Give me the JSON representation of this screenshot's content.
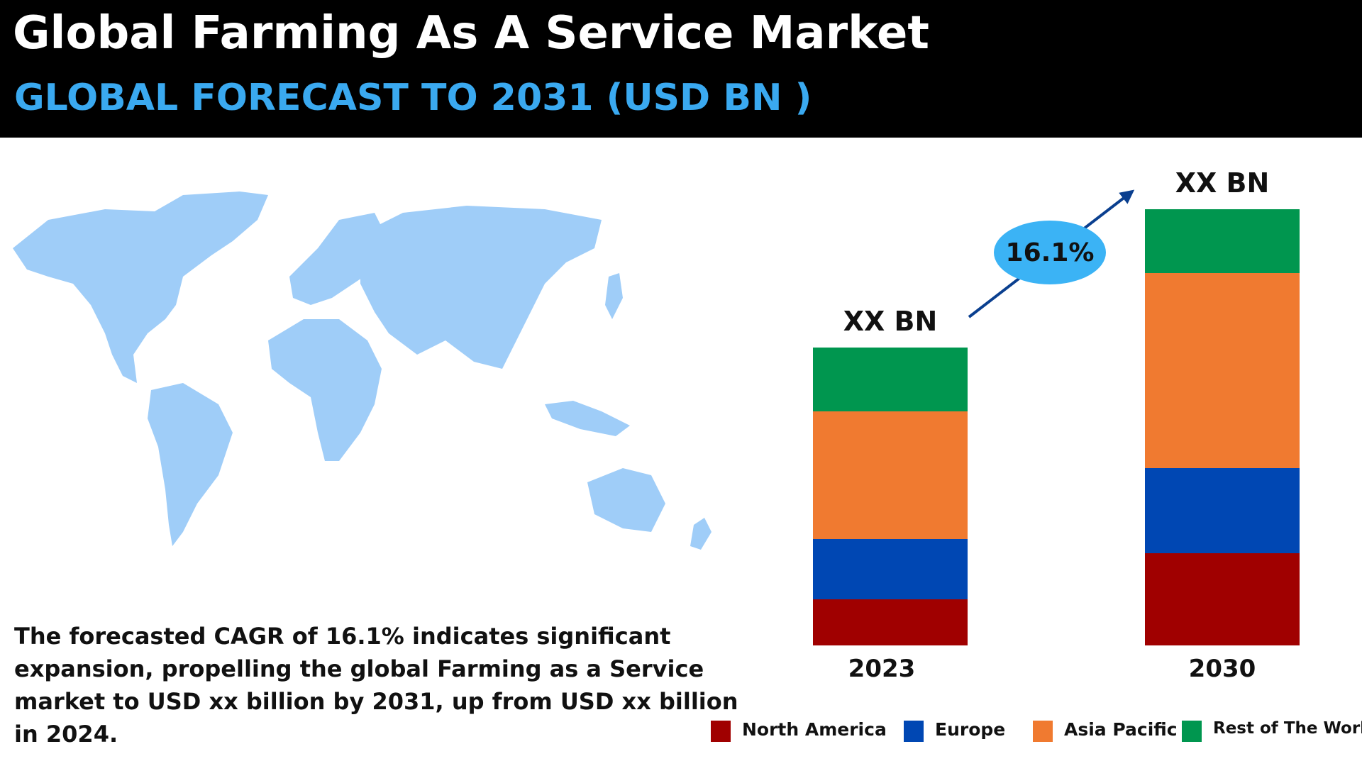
{
  "header": {
    "title": "Global Farming As A Service Market",
    "subtitle": "GLOBAL FORECAST TO 2031 (USD BN )",
    "subtitle_color": "#3aa9f0"
  },
  "map": {
    "fill_color": "#9fcdf8"
  },
  "description": "The forecasted CAGR of 16.1% indicates significant expansion, propelling the global Farming as a Service market to USD xx billion by 2031, up from USD xx billion in 2024.",
  "chart_data": {
    "type": "bar",
    "stacked": true,
    "categories": [
      "2023",
      "2030"
    ],
    "total_labels": [
      "XX BN",
      "XX BN"
    ],
    "series": [
      {
        "name": "North America",
        "color": "#a00000",
        "values": [
          6.5,
          13
        ]
      },
      {
        "name": "Europe",
        "color": "#0047b3",
        "values": [
          8.5,
          12
        ]
      },
      {
        "name": "Asia Pacific",
        "color": "#f07a30",
        "values": [
          18,
          27.5
        ]
      },
      {
        "name": "Rest of The World",
        "color": "#00964f",
        "values": [
          9,
          9
        ]
      }
    ],
    "growth_label": "16.1%",
    "growth_bubble_color": "#3bb3f5",
    "arrow_color": "#0a3f8f",
    "legend_position": "bottom-right",
    "title": "",
    "xlabel": "",
    "ylabel": ""
  }
}
